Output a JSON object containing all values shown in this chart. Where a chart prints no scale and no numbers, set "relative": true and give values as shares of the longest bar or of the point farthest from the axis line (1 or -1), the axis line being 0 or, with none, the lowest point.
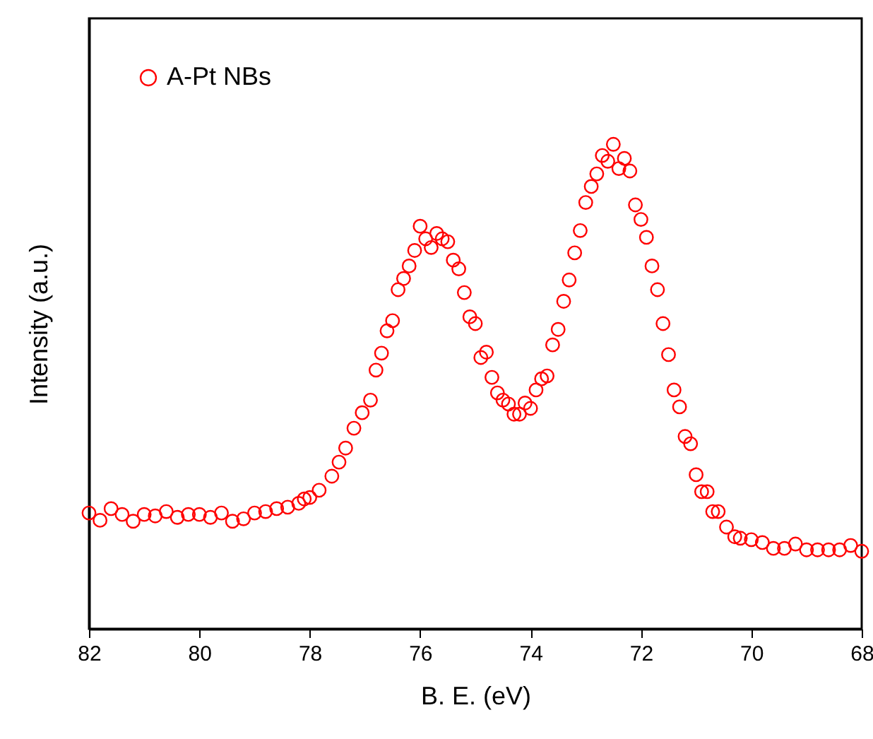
{
  "chart_data": {
    "type": "scatter",
    "xlabel": "B. E. (eV)",
    "ylabel": "Intensity (a.u.)",
    "relative": true,
    "xlim": [
      82,
      68
    ],
    "xticks": [
      82,
      80,
      78,
      76,
      74,
      72,
      70,
      68
    ],
    "marker": "circle",
    "legend": "top left",
    "grid": false,
    "tick_labels": "x",
    "series": [
      {
        "name": "A-Pt NBs",
        "color": "#ff0000",
        "x": [
          82.0,
          81.8,
          81.6,
          81.4,
          81.2,
          81.0,
          80.8,
          80.6,
          80.4,
          80.2,
          80.0,
          79.8,
          79.6,
          79.4,
          79.2,
          79.0,
          78.8,
          78.6,
          78.4,
          78.2,
          78.1,
          78.0,
          77.83,
          77.6,
          77.47,
          77.35,
          77.2,
          77.05,
          76.9,
          76.8,
          76.7,
          76.6,
          76.5,
          76.4,
          76.3,
          76.2,
          76.1,
          76.0,
          75.9,
          75.8,
          75.7,
          75.6,
          75.5,
          75.4,
          75.3,
          75.2,
          75.1,
          75.0,
          74.9,
          74.8,
          74.7,
          74.6,
          74.5,
          74.4,
          74.3,
          74.2,
          74.1,
          74.0,
          73.9,
          73.8,
          73.7,
          73.6,
          73.5,
          73.4,
          73.3,
          73.2,
          73.1,
          73.0,
          72.9,
          72.8,
          72.7,
          72.6,
          72.5,
          72.4,
          72.3,
          72.2,
          72.1,
          72.0,
          71.9,
          71.8,
          71.7,
          71.6,
          71.5,
          71.4,
          71.3,
          71.2,
          71.1,
          71.0,
          70.9,
          70.8,
          70.7,
          70.6,
          70.45,
          70.3,
          70.2,
          70.0,
          69.8,
          69.6,
          69.4,
          69.2,
          69.0,
          68.8,
          68.6,
          68.4,
          68.2,
          68.0
        ],
        "values": [
          0.239,
          0.224,
          0.248,
          0.236,
          0.222,
          0.236,
          0.233,
          0.242,
          0.23,
          0.236,
          0.236,
          0.23,
          0.239,
          0.222,
          0.227,
          0.239,
          0.242,
          0.248,
          0.251,
          0.259,
          0.268,
          0.271,
          0.286,
          0.315,
          0.344,
          0.373,
          0.414,
          0.446,
          0.472,
          0.534,
          0.569,
          0.615,
          0.636,
          0.7,
          0.723,
          0.749,
          0.781,
          0.831,
          0.805,
          0.787,
          0.816,
          0.805,
          0.799,
          0.761,
          0.743,
          0.694,
          0.644,
          0.63,
          0.56,
          0.571,
          0.519,
          0.487,
          0.472,
          0.464,
          0.443,
          0.443,
          0.466,
          0.455,
          0.493,
          0.516,
          0.522,
          0.586,
          0.618,
          0.676,
          0.72,
          0.776,
          0.822,
          0.88,
          0.913,
          0.939,
          0.977,
          0.965,
          1.0,
          0.95,
          0.971,
          0.945,
          0.875,
          0.845,
          0.808,
          0.749,
          0.7,
          0.63,
          0.566,
          0.493,
          0.458,
          0.397,
          0.382,
          0.318,
          0.283,
          0.283,
          0.242,
          0.242,
          0.21,
          0.19,
          0.187,
          0.184,
          0.178,
          0.166,
          0.166,
          0.175,
          0.163,
          0.163,
          0.163,
          0.163,
          0.172,
          0.16
        ]
      }
    ]
  }
}
